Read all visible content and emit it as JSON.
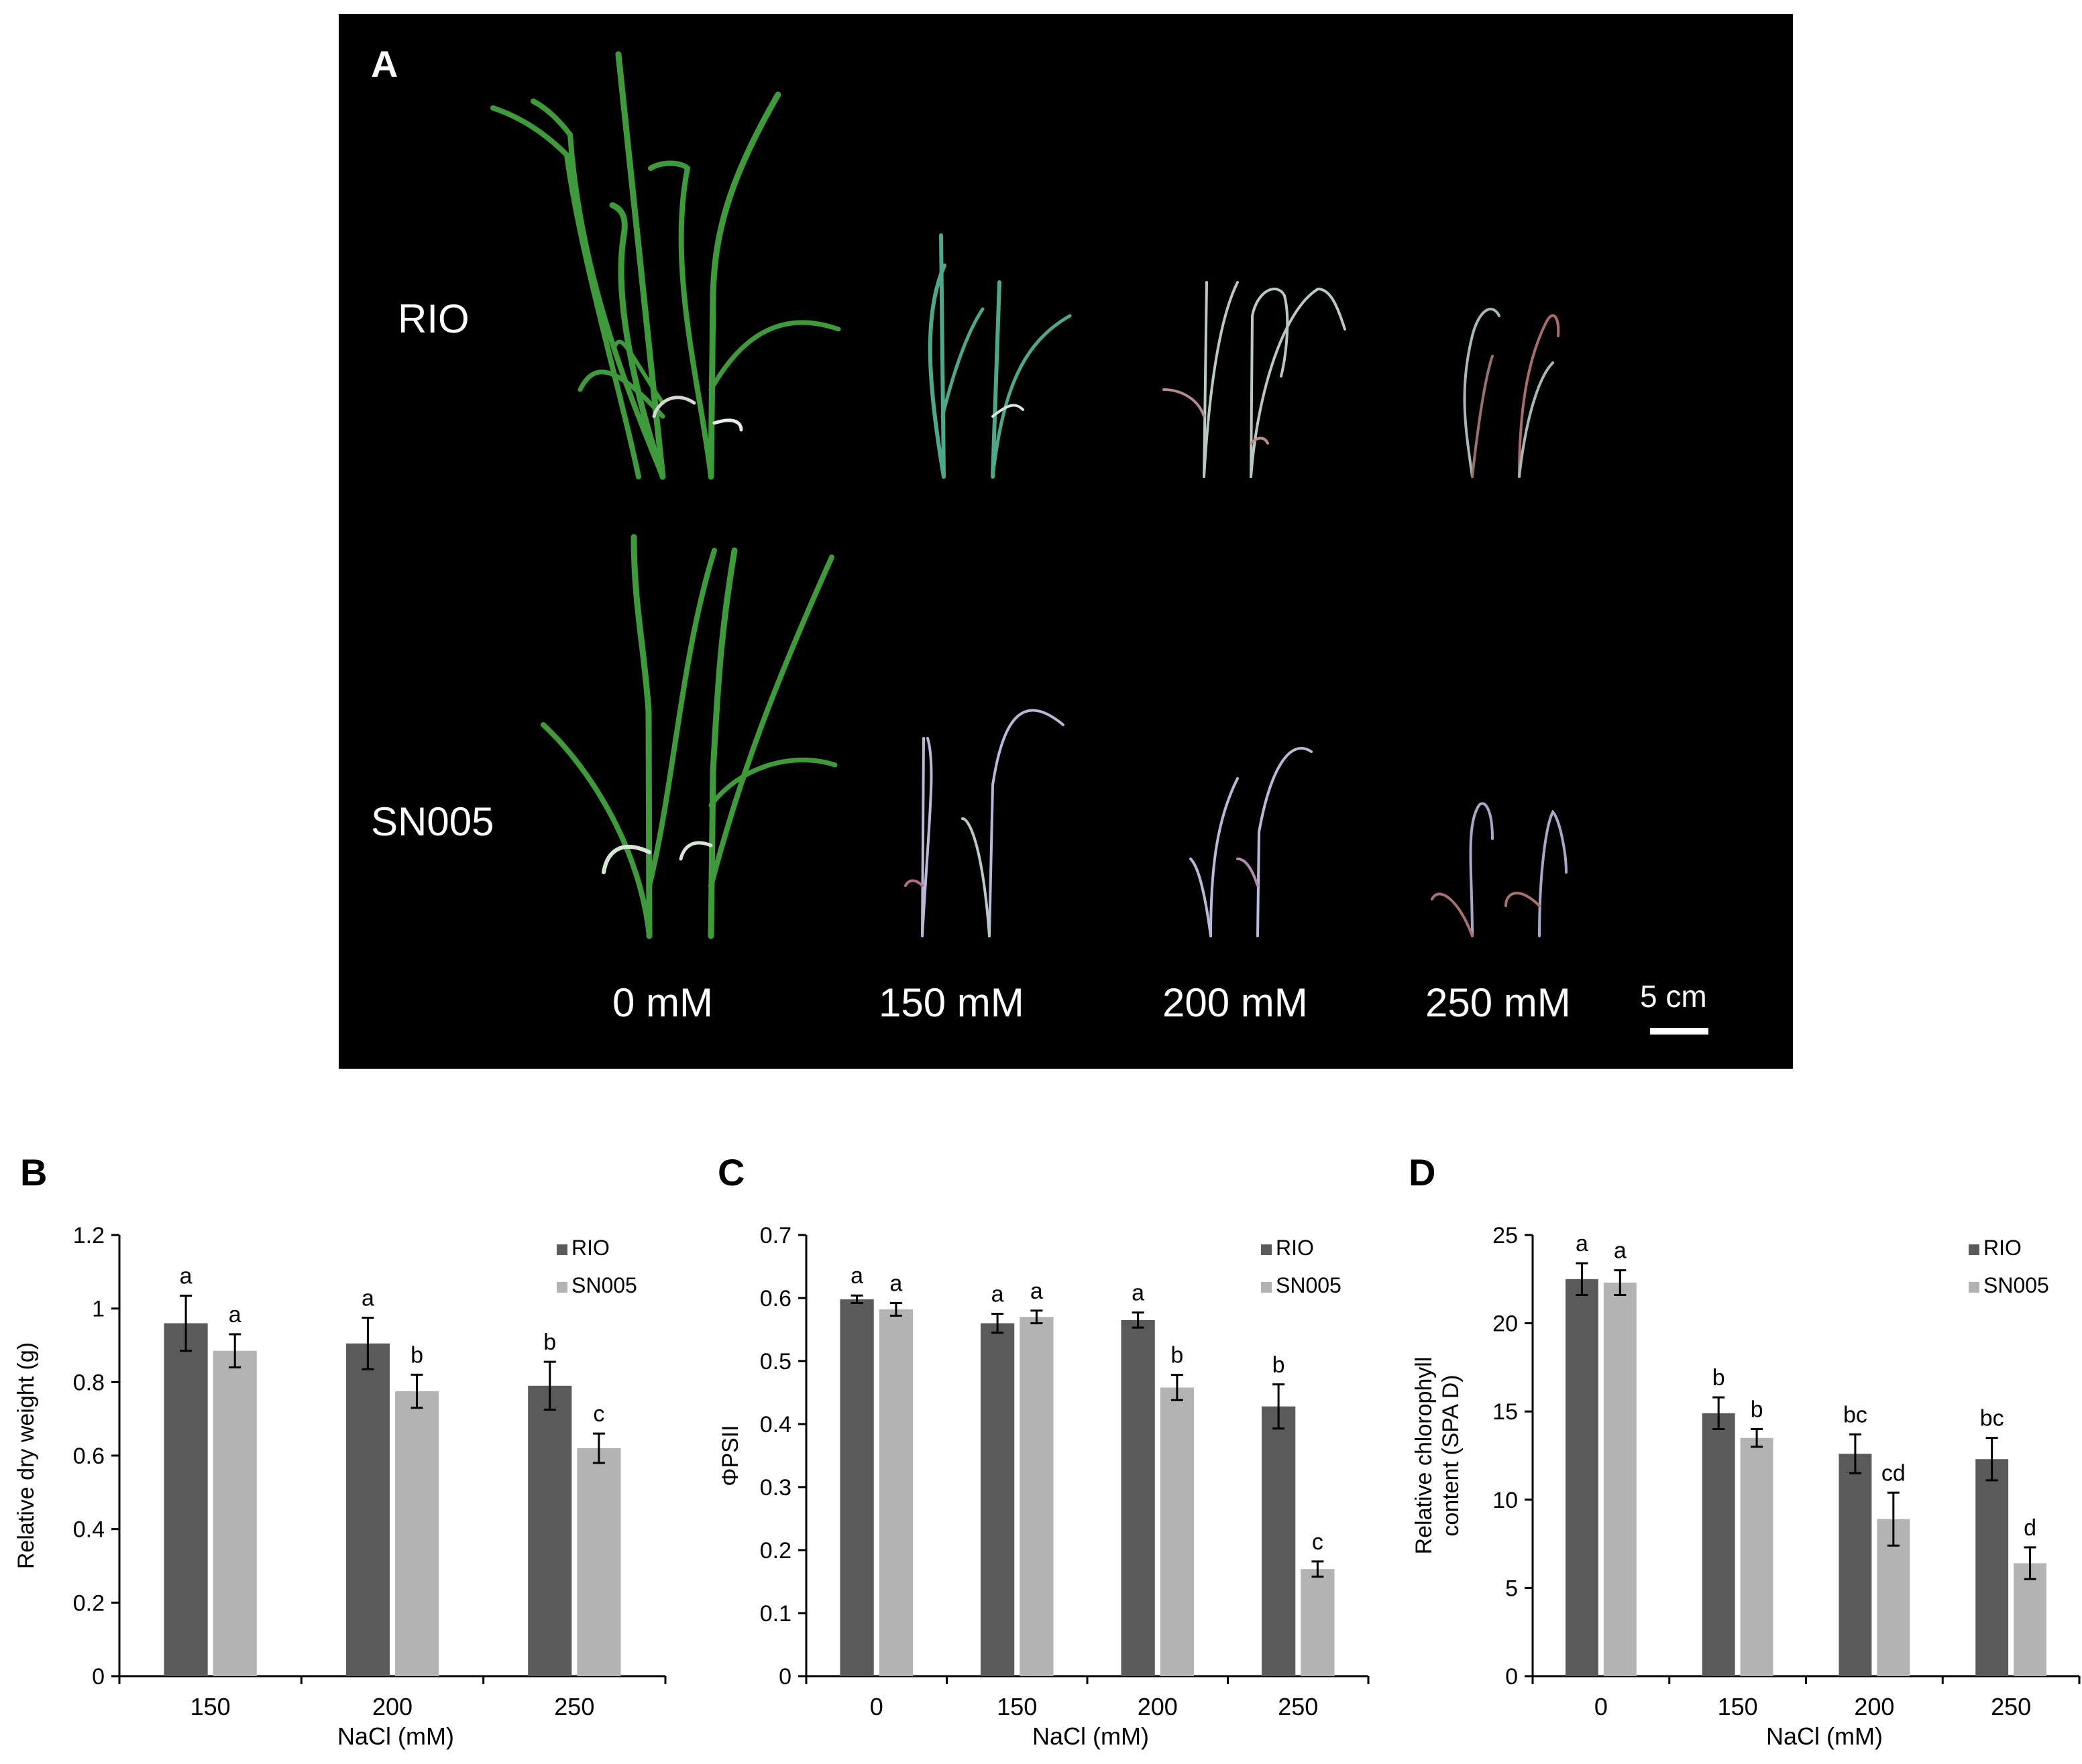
{
  "panel_a": {
    "label": "A",
    "rows": [
      "RIO",
      "SN005"
    ],
    "treatments": [
      "0 mM",
      "150 mM",
      "200 mM",
      "250 mM"
    ],
    "scale_bar": "5 cm"
  },
  "colors": {
    "rio": "#5a5a5a",
    "sn005": "#b3b3b3",
    "leaf_green": "#3f9a3c",
    "stressed_leaf": "#b8c9c0"
  },
  "chart_data": [
    {
      "panel": "B",
      "type": "bar",
      "ylabel": "Relative dry weight (g)",
      "xlabel": "NaCl (mM)",
      "categories": [
        "150",
        "200",
        "250"
      ],
      "ylim": [
        0,
        1.2
      ],
      "yticks": [
        "0",
        "0.2",
        "0.4",
        "0.6",
        "0.8",
        "1",
        "1.2"
      ],
      "legend": "top-right",
      "series": [
        {
          "name": "RIO",
          "values": [
            0.96,
            0.905,
            0.79
          ],
          "errors": [
            0.075,
            0.07,
            0.065
          ],
          "letters": [
            "a",
            "a",
            "b"
          ]
        },
        {
          "name": "SN005",
          "values": [
            0.885,
            0.775,
            0.62
          ],
          "errors": [
            0.045,
            0.045,
            0.04
          ],
          "letters": [
            "a",
            "b",
            "c"
          ]
        }
      ]
    },
    {
      "panel": "C",
      "type": "bar",
      "ylabel": "ΦPSII",
      "xlabel": "NaCl (mM)",
      "categories": [
        "0",
        "150",
        "200",
        "250"
      ],
      "ylim": [
        0,
        0.7
      ],
      "yticks": [
        "0",
        "0.1",
        "0.2",
        "0.3",
        "0.4",
        "0.5",
        "0.6",
        "0.7"
      ],
      "legend": "top-right",
      "series": [
        {
          "name": "RIO",
          "values": [
            0.598,
            0.56,
            0.565,
            0.428
          ],
          "errors": [
            0.006,
            0.015,
            0.012,
            0.035
          ],
          "letters": [
            "a",
            "a",
            "a",
            "b"
          ]
        },
        {
          "name": "SN005",
          "values": [
            0.582,
            0.57,
            0.458,
            0.17
          ],
          "errors": [
            0.01,
            0.01,
            0.02,
            0.012
          ],
          "letters": [
            "a",
            "a",
            "b",
            "c"
          ]
        }
      ]
    },
    {
      "panel": "D",
      "type": "bar",
      "ylabel": "Relative chlorophyll content (SPAD)",
      "ylabel_lines": [
        "Relative chlorophyll",
        "content (SPA D)"
      ],
      "xlabel": "NaCl (mM)",
      "categories": [
        "0",
        "150",
        "200",
        "250"
      ],
      "ylim": [
        0,
        25
      ],
      "yticks": [
        "0",
        "5",
        "10",
        "15",
        "20",
        "25"
      ],
      "legend": "top-right",
      "series": [
        {
          "name": "RIO",
          "values": [
            22.5,
            14.9,
            12.6,
            12.3
          ],
          "errors": [
            0.9,
            0.9,
            1.1,
            1.2
          ],
          "letters": [
            "a",
            "b",
            "bc",
            "bc"
          ]
        },
        {
          "name": "SN005",
          "values": [
            22.3,
            13.5,
            8.9,
            6.4
          ],
          "errors": [
            0.7,
            0.5,
            1.5,
            0.9
          ],
          "letters": [
            "a",
            "b",
            "cd",
            "d"
          ]
        }
      ]
    }
  ]
}
